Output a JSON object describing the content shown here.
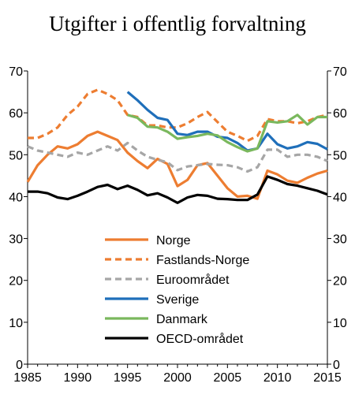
{
  "chart_data": {
    "type": "line",
    "title": "Utgifter i offentlig forvaltning",
    "xlabel": "",
    "ylabel": "",
    "xlim": [
      1985,
      2015
    ],
    "ylim": [
      0,
      70
    ],
    "x_ticks": [
      1985,
      1990,
      1995,
      2000,
      2005,
      2010,
      2015
    ],
    "y_ticks": [
      0,
      10,
      20,
      30,
      40,
      50,
      60,
      70
    ],
    "grid": false,
    "legend_position": "lower-center",
    "series": [
      {
        "name": "Norge",
        "color": "#ed7d31",
        "dashed": false,
        "points": [
          [
            1985,
            43.5
          ],
          [
            1986,
            47.5
          ],
          [
            1987,
            50
          ],
          [
            1988,
            52
          ],
          [
            1989,
            51.5
          ],
          [
            1990,
            52.5
          ],
          [
            1991,
            54.5
          ],
          [
            1992,
            55.5
          ],
          [
            1993,
            54.5
          ],
          [
            1994,
            53.5
          ],
          [
            1995,
            50.5
          ],
          [
            1996,
            48.5
          ],
          [
            1997,
            46.8
          ],
          [
            1998,
            49
          ],
          [
            1999,
            47.8
          ],
          [
            2000,
            42.5
          ],
          [
            2001,
            44
          ],
          [
            2002,
            47.5
          ],
          [
            2003,
            48
          ],
          [
            2004,
            45
          ],
          [
            2005,
            42
          ],
          [
            2006,
            40
          ],
          [
            2007,
            40.2
          ],
          [
            2008,
            39.5
          ],
          [
            2009,
            46.2
          ],
          [
            2010,
            45.3
          ],
          [
            2011,
            43.8
          ],
          [
            2012,
            43.3
          ],
          [
            2013,
            44.5
          ],
          [
            2014,
            45.5
          ],
          [
            2015,
            46.2
          ]
        ]
      },
      {
        "name": "Fastlands-Norge",
        "color": "#ed7d31",
        "dashed": true,
        "points": [
          [
            1985,
            54
          ],
          [
            1986,
            54
          ],
          [
            1987,
            55
          ],
          [
            1988,
            56.5
          ],
          [
            1989,
            59.5
          ],
          [
            1990,
            61.5
          ],
          [
            1991,
            64.5
          ],
          [
            1992,
            65.5
          ],
          [
            1993,
            64.5
          ],
          [
            1994,
            63
          ],
          [
            1995,
            59.5
          ],
          [
            1996,
            59
          ],
          [
            1997,
            57
          ],
          [
            1998,
            57
          ],
          [
            1999,
            56.5
          ],
          [
            2000,
            56.5
          ],
          [
            2001,
            57.5
          ],
          [
            2002,
            59
          ],
          [
            2003,
            60.2
          ],
          [
            2004,
            57.8
          ],
          [
            2005,
            55.5
          ],
          [
            2006,
            54.5
          ],
          [
            2007,
            53.3
          ],
          [
            2008,
            54.5
          ],
          [
            2009,
            58.5
          ],
          [
            2010,
            58
          ],
          [
            2011,
            58
          ],
          [
            2012,
            57.5
          ],
          [
            2013,
            58
          ],
          [
            2014,
            59
          ],
          [
            2015,
            59.5
          ]
        ]
      },
      {
        "name": "Euroområdet",
        "color": "#a6a6a6",
        "dashed": true,
        "points": [
          [
            1985,
            52
          ],
          [
            1986,
            51
          ],
          [
            1987,
            50.5
          ],
          [
            1988,
            50
          ],
          [
            1989,
            49.5
          ],
          [
            1990,
            50.5
          ],
          [
            1991,
            50
          ],
          [
            1992,
            51
          ],
          [
            1993,
            52
          ],
          [
            1994,
            51
          ],
          [
            1995,
            52.8
          ],
          [
            1996,
            51
          ],
          [
            1997,
            49.5
          ],
          [
            1998,
            48.8
          ],
          [
            1999,
            48.2
          ],
          [
            2000,
            46.3
          ],
          [
            2001,
            47.2
          ],
          [
            2002,
            47.5
          ],
          [
            2003,
            47.8
          ],
          [
            2004,
            47.6
          ],
          [
            2005,
            47.5
          ],
          [
            2006,
            47
          ],
          [
            2007,
            46
          ],
          [
            2008,
            47
          ],
          [
            2009,
            51.2
          ],
          [
            2010,
            51.2
          ],
          [
            2011,
            49.5
          ],
          [
            2012,
            50
          ],
          [
            2013,
            50
          ],
          [
            2014,
            49.5
          ],
          [
            2015,
            48.5
          ]
        ]
      },
      {
        "name": "Sverige",
        "color": "#1f6fba",
        "dashed": false,
        "points": [
          [
            1995,
            65
          ],
          [
            1996,
            63
          ],
          [
            1997,
            60.7
          ],
          [
            1998,
            58.8
          ],
          [
            1999,
            58.3
          ],
          [
            2000,
            55
          ],
          [
            2001,
            54.7
          ],
          [
            2002,
            55.5
          ],
          [
            2003,
            55.5
          ],
          [
            2004,
            54.3
          ],
          [
            2005,
            54
          ],
          [
            2006,
            52.8
          ],
          [
            2007,
            51
          ],
          [
            2008,
            51.5
          ],
          [
            2009,
            55
          ],
          [
            2010,
            52.5
          ],
          [
            2011,
            51.5
          ],
          [
            2012,
            52
          ],
          [
            2013,
            53
          ],
          [
            2014,
            52.6
          ],
          [
            2015,
            51.3
          ]
        ]
      },
      {
        "name": "Danmark",
        "color": "#7ab85d",
        "dashed": false,
        "points": [
          [
            1995,
            59.5
          ],
          [
            1996,
            58.8
          ],
          [
            1997,
            56.7
          ],
          [
            1998,
            56.5
          ],
          [
            1999,
            55.5
          ],
          [
            2000,
            53.8
          ],
          [
            2001,
            54.2
          ],
          [
            2002,
            54.5
          ],
          [
            2003,
            55
          ],
          [
            2004,
            54.6
          ],
          [
            2005,
            53
          ],
          [
            2006,
            51.8
          ],
          [
            2007,
            50.8
          ],
          [
            2008,
            51.5
          ],
          [
            2009,
            58
          ],
          [
            2010,
            57.7
          ],
          [
            2011,
            58
          ],
          [
            2012,
            59.5
          ],
          [
            2013,
            57.2
          ],
          [
            2014,
            59
          ],
          [
            2015,
            59
          ]
        ]
      },
      {
        "name": "OECD-området",
        "color": "#000000",
        "dashed": false,
        "points": [
          [
            1985,
            41.2
          ],
          [
            1986,
            41.2
          ],
          [
            1987,
            40.8
          ],
          [
            1988,
            39.8
          ],
          [
            1989,
            39.4
          ],
          [
            1990,
            40.2
          ],
          [
            1991,
            41.2
          ],
          [
            1992,
            42.3
          ],
          [
            1993,
            42.8
          ],
          [
            1994,
            41.8
          ],
          [
            1995,
            42.6
          ],
          [
            1996,
            41.6
          ],
          [
            1997,
            40.3
          ],
          [
            1998,
            40.8
          ],
          [
            1999,
            39.8
          ],
          [
            2000,
            38.5
          ],
          [
            2001,
            39.8
          ],
          [
            2002,
            40.4
          ],
          [
            2003,
            40.2
          ],
          [
            2004,
            39.5
          ],
          [
            2005,
            39.4
          ],
          [
            2006,
            39.2
          ],
          [
            2007,
            39.2
          ],
          [
            2008,
            40.5
          ],
          [
            2009,
            44.8
          ],
          [
            2010,
            44
          ],
          [
            2011,
            43
          ],
          [
            2012,
            42.6
          ],
          [
            2013,
            42
          ],
          [
            2014,
            41.4
          ],
          [
            2015,
            40.5
          ]
        ]
      }
    ]
  }
}
